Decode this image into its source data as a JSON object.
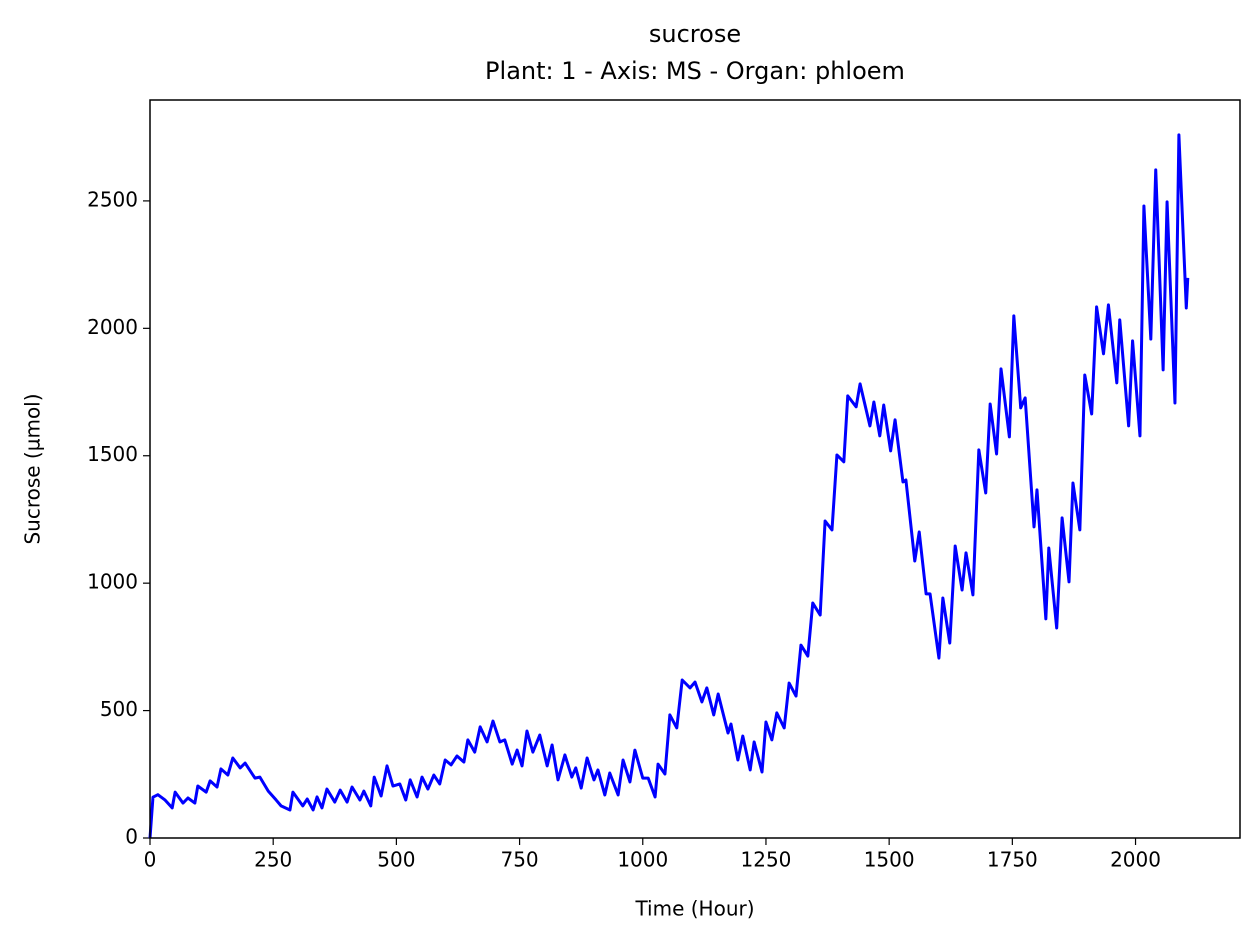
{
  "chart_data": {
    "type": "line",
    "title": "sucrose",
    "subtitle": "Plant: 1 - Axis: MS - Organ: phloem",
    "x_label": "Time (Hour)",
    "y_label": "Sucrose (µmol)",
    "xlim": [
      0,
      2212
    ],
    "xticks": [
      0,
      250,
      500,
      750,
      1000,
      1250,
      1500,
      1750,
      2000
    ],
    "ylim": [
      0,
      2896
    ],
    "yticks": [
      0,
      500,
      1000,
      1500,
      2000,
      2500
    ],
    "grid": false,
    "series": [
      {
        "name": "sucrose",
        "color": "#0000ff",
        "x": [
          0,
          6,
          16,
          30,
          45,
          51,
          67,
          77,
          91,
          97,
          114,
          122,
          136,
          144,
          158,
          168,
          183,
          193,
          213,
          223,
          240,
          256,
          266,
          284,
          290,
          310,
          319,
          331,
          339,
          349,
          359,
          375,
          386,
          400,
          410,
          426,
          434,
          448,
          455,
          469,
          481,
          493,
          507,
          519,
          528,
          542,
          552,
          564,
          576,
          588,
          599,
          611,
          623,
          637,
          645,
          659,
          670,
          684,
          696,
          710,
          720,
          735,
          745,
          755,
          765,
          777,
          791,
          806,
          816,
          828,
          842,
          856,
          864,
          875,
          887,
          901,
          909,
          923,
          933,
          950,
          960,
          974,
          984,
          1000,
          1011,
          1025,
          1031,
          1045,
          1055,
          1069,
          1080,
          1096,
          1106,
          1120,
          1130,
          1144,
          1153,
          1173,
          1179,
          1193,
          1203,
          1218,
          1226,
          1242,
          1250,
          1262,
          1272,
          1287,
          1297,
          1311,
          1321,
          1335,
          1345,
          1360,
          1370,
          1384,
          1394,
          1408,
          1416,
          1433,
          1441,
          1461,
          1469,
          1481,
          1489,
          1503,
          1512,
          1528,
          1534,
          1552,
          1561,
          1575,
          1583,
          1601,
          1609,
          1623,
          1634,
          1648,
          1656,
          1670,
          1682,
          1696,
          1705,
          1718,
          1727,
          1744,
          1753,
          1767,
          1776,
          1794,
          1800,
          1818,
          1824,
          1840,
          1851,
          1865,
          1873,
          1887,
          1897,
          1911,
          1921,
          1935,
          1945,
          1962,
          1968,
          1986,
          1994,
          2009,
          2017,
          2031,
          2041,
          2056,
          2064,
          2080,
          2088,
          2103,
          2106
        ],
        "values": [
          0,
          160,
          170,
          150,
          118,
          180,
          137,
          157,
          137,
          204,
          180,
          224,
          200,
          271,
          247,
          314,
          275,
          294,
          235,
          239,
          184,
          149,
          126,
          110,
          180,
          126,
          153,
          110,
          161,
          118,
          192,
          141,
          188,
          141,
          200,
          149,
          184,
          126,
          239,
          165,
          283,
          204,
          212,
          149,
          228,
          161,
          239,
          192,
          247,
          212,
          306,
          287,
          322,
          298,
          385,
          337,
          436,
          377,
          459,
          377,
          385,
          290,
          345,
          283,
          420,
          337,
          404,
          283,
          365,
          228,
          326,
          239,
          275,
          196,
          314,
          228,
          267,
          169,
          255,
          169,
          306,
          220,
          345,
          235,
          235,
          161,
          290,
          251,
          483,
          432,
          620,
          589,
          612,
          534,
          589,
          483,
          565,
          412,
          447,
          306,
          400,
          267,
          377,
          259,
          455,
          385,
          491,
          432,
          608,
          557,
          757,
          714,
          922,
          875,
          1244,
          1209,
          1503,
          1476,
          1735,
          1692,
          1782,
          1617,
          1711,
          1578,
          1699,
          1519,
          1641,
          1397,
          1405,
          1087,
          1201,
          958,
          958,
          706,
          942,
          765,
          1146,
          973,
          1119,
          954,
          1523,
          1354,
          1703,
          1507,
          1841,
          1574,
          2049,
          1688,
          1727,
          1221,
          1366,
          860,
          1138,
          824,
          1256,
          1005,
          1393,
          1209,
          1817,
          1664,
          2084,
          1900,
          2092,
          1786,
          2033,
          1617,
          1951,
          1578,
          2480,
          1958,
          2622,
          1837,
          2496,
          1707,
          2759,
          2080,
          2198
        ]
      }
    ]
  }
}
